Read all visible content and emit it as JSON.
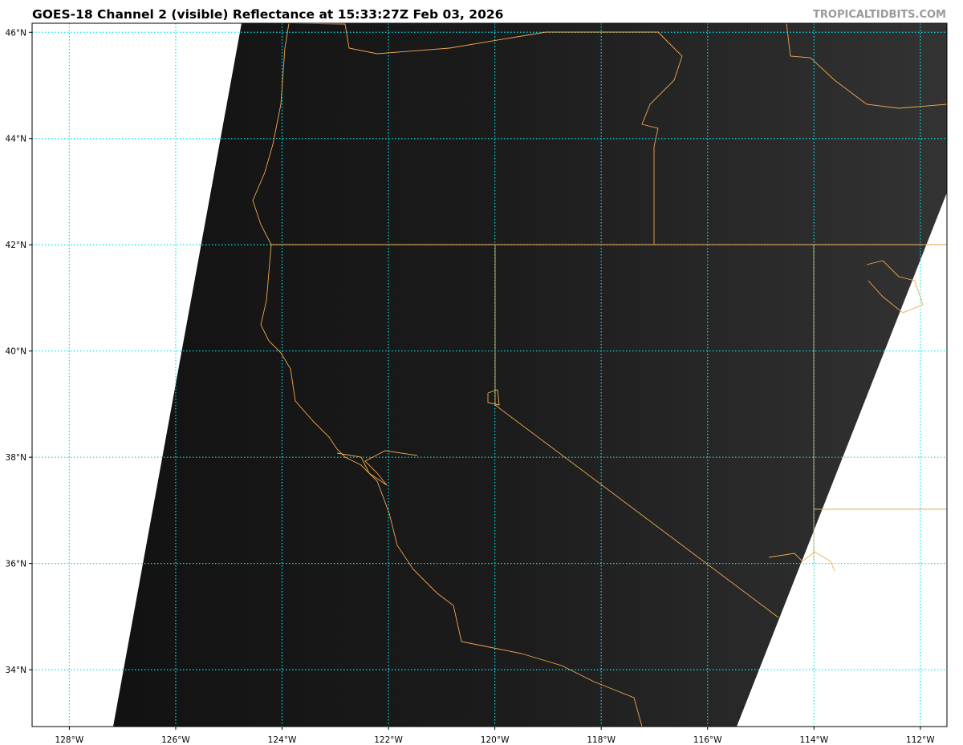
{
  "header": {
    "title": "GOES-18 Channel 2 (visible) Reflectance at 15:33:27Z Feb 03, 2026",
    "watermark": "TROPICALTIDBITS.COM"
  },
  "map": {
    "extent": {
      "lon": [
        -128.7,
        -111.5
      ],
      "lat": [
        32.93,
        46.17
      ]
    },
    "lat_labels": [
      {
        "value": 46,
        "label": "46°N"
      },
      {
        "value": 44,
        "label": "44°N"
      },
      {
        "value": 42,
        "label": "42°N"
      },
      {
        "value": 40,
        "label": "40°N"
      },
      {
        "value": 38,
        "label": "38°N"
      },
      {
        "value": 36,
        "label": "36°N"
      },
      {
        "value": 34,
        "label": "34°N"
      }
    ],
    "lon_labels": [
      {
        "value": -128,
        "label": "128°W"
      },
      {
        "value": -126,
        "label": "126°W"
      },
      {
        "value": -124,
        "label": "124°W"
      },
      {
        "value": -122,
        "label": "122°W"
      },
      {
        "value": -120,
        "label": "120°W"
      },
      {
        "value": -118,
        "label": "118°W"
      },
      {
        "value": -116,
        "label": "116°W"
      },
      {
        "value": -114,
        "label": "114°W"
      },
      {
        "value": -112,
        "label": "112°W"
      }
    ],
    "colors": {
      "gridlines": "#00e5ee",
      "borders": "#f0a850",
      "imagery_dark": "#121212",
      "imagery_light": "#2e2e2e",
      "no_data": "#ffffff"
    }
  }
}
